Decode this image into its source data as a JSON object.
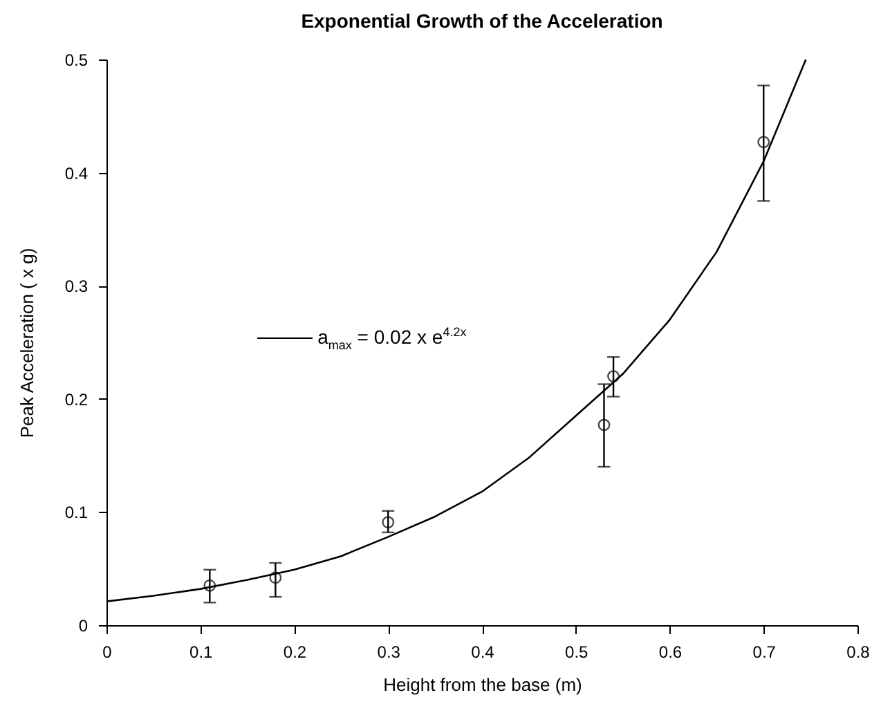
{
  "chart_data": {
    "type": "scatter",
    "title": "Exponential Growth of the Acceleration",
    "xlabel": "Height from the base (m)",
    "ylabel": "Peak Acceleration ( x g)",
    "xlim": [
      0,
      0.8
    ],
    "xticks": [
      0,
      0.1,
      0.2,
      0.3,
      0.4,
      0.5,
      0.6,
      0.7,
      0.8
    ],
    "ylim": [
      0,
      0.5
    ],
    "yticks": [
      0,
      0.1,
      0.2,
      0.3,
      0.4,
      0.5
    ],
    "grid": false,
    "legend": "left",
    "series": [
      {
        "type": "scatter",
        "color": "#000000",
        "marker": "circle",
        "x": [
          0.11,
          0.18,
          0.3,
          0.53,
          0.54,
          0.7
        ],
        "values": [
          0.035,
          0.042,
          0.091,
          0.177,
          0.22,
          0.427
        ],
        "errors": [
          [
            0.02,
            0.049
          ],
          [
            0.025,
            0.055
          ],
          [
            0.082,
            0.101
          ],
          [
            0.14,
            0.213
          ],
          [
            0.202,
            0.237
          ],
          [
            0.375,
            0.477
          ]
        ]
      },
      {
        "type": "line",
        "name": "a$_{max}$ = 0.02 x e$^{4.2x}$",
        "color": "#000000",
        "x": [
          0,
          0.05,
          0.1,
          0.15,
          0.2,
          0.25,
          0.3,
          0.35,
          0.4,
          0.45,
          0.5,
          0.55,
          0.6,
          0.65,
          0.7,
          0.745
        ],
        "values": [
          0.021,
          0.026,
          0.032,
          0.04,
          0.049,
          0.061,
          0.078,
          0.096,
          0.118,
          0.148,
          0.185,
          0.222,
          0.27,
          0.33,
          0.41,
          0.5
        ]
      }
    ]
  }
}
